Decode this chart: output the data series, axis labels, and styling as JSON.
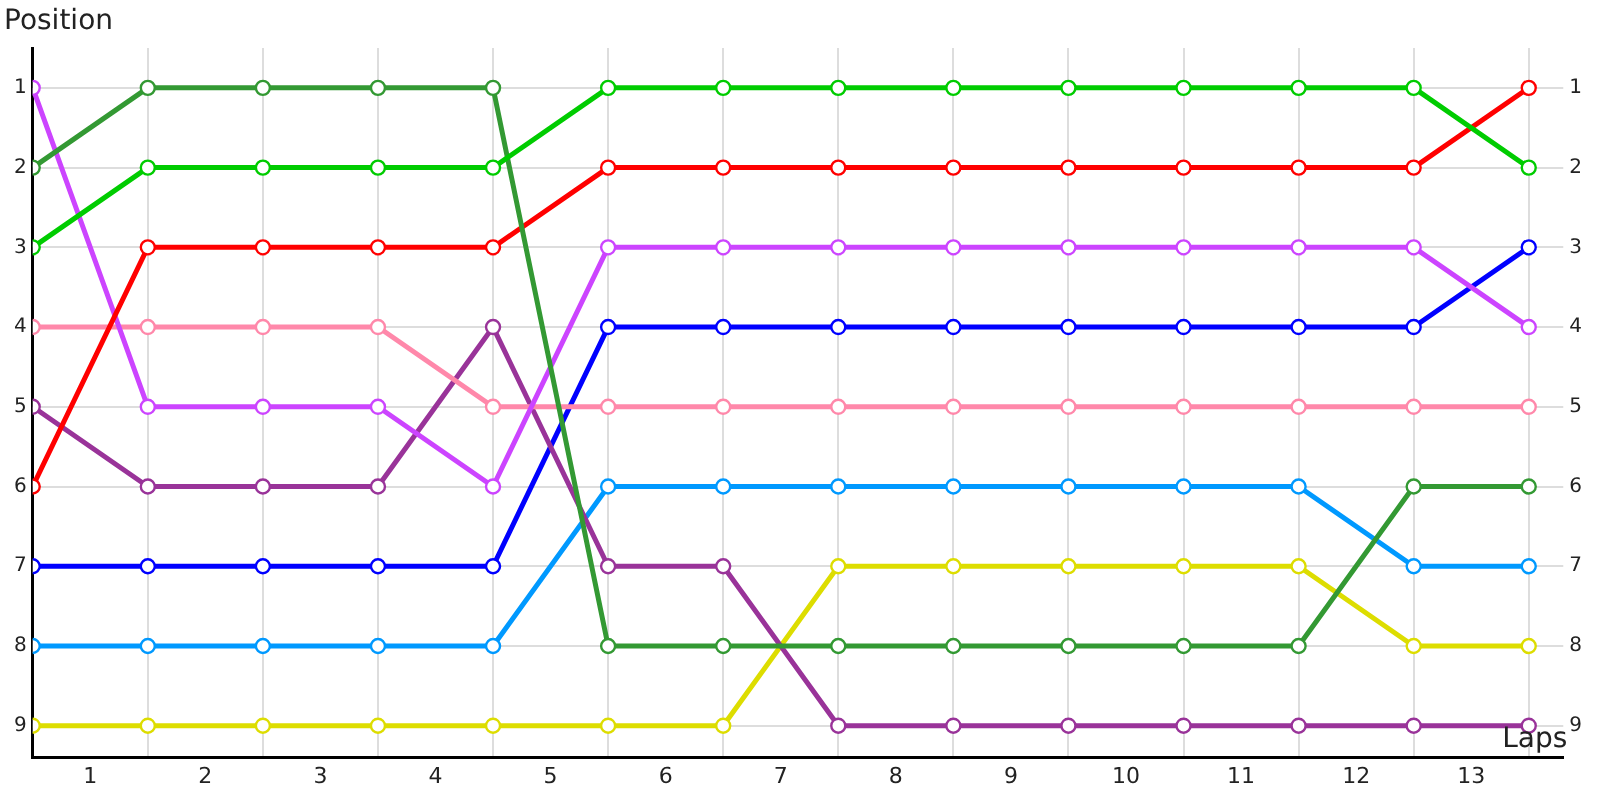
{
  "chart_data": {
    "type": "line",
    "xlabel": "Laps",
    "ylabel": "Position",
    "x": [
      0,
      1,
      2,
      3,
      4,
      5,
      6,
      7,
      8,
      9,
      10,
      11,
      12,
      13
    ],
    "xlim": [
      0,
      13.3
    ],
    "xticks": [
      {
        "value": 0,
        "label": null
      },
      {
        "value": 0.5,
        "label": "1"
      },
      {
        "value": 1,
        "label": null
      },
      {
        "value": 1.5,
        "label": "2"
      },
      {
        "value": 2,
        "label": null
      },
      {
        "value": 2.5,
        "label": "3"
      },
      {
        "value": 3,
        "label": null
      },
      {
        "value": 3.5,
        "label": "4"
      },
      {
        "value": 4,
        "label": null
      },
      {
        "value": 4.5,
        "label": "5"
      },
      {
        "value": 5,
        "label": null
      },
      {
        "value": 5.5,
        "label": "6"
      },
      {
        "value": 6,
        "label": null
      },
      {
        "value": 6.5,
        "label": "7"
      },
      {
        "value": 7,
        "label": null
      },
      {
        "value": 7.5,
        "label": "8"
      },
      {
        "value": 8,
        "label": null
      },
      {
        "value": 8.5,
        "label": "9"
      },
      {
        "value": 9,
        "label": null
      },
      {
        "value": 9.5,
        "label": "10"
      },
      {
        "value": 10,
        "label": null
      },
      {
        "value": 10.5,
        "label": "11"
      },
      {
        "value": 11,
        "label": null
      },
      {
        "value": 11.5,
        "label": "12"
      },
      {
        "value": 12,
        "label": null
      },
      {
        "value": 12.5,
        "label": "13"
      },
      {
        "value": 13,
        "label": null
      }
    ],
    "ylim": [
      9.4,
      0.5
    ],
    "yticks": [
      1,
      2,
      3,
      4,
      5,
      6,
      7,
      8,
      9
    ],
    "y2lim": [
      9.4,
      0.5
    ],
    "y2ticks": [
      1,
      2,
      3,
      4,
      5,
      6,
      7,
      8,
      9
    ],
    "grid": true,
    "marker": "circle",
    "line_style": "solid",
    "legend": false,
    "series": [
      {
        "color": "#00cc00",
        "values": [
          3,
          2,
          2,
          2,
          2,
          1,
          1,
          1,
          1,
          1,
          1,
          1,
          1,
          2
        ]
      },
      {
        "color": "#339933",
        "values": [
          2,
          1,
          1,
          1,
          1,
          8,
          8,
          8,
          8,
          8,
          8,
          8,
          6,
          6
        ]
      },
      {
        "color": "#ff0000",
        "values": [
          6,
          3,
          3,
          3,
          3,
          2,
          2,
          2,
          2,
          2,
          2,
          2,
          2,
          1
        ]
      },
      {
        "color": "#cc44ff",
        "values": [
          1,
          5,
          5,
          5,
          6,
          3,
          3,
          3,
          3,
          3,
          3,
          3,
          3,
          4
        ]
      },
      {
        "color": "#ff88aa",
        "values": [
          4,
          4,
          4,
          4,
          5,
          5,
          5,
          5,
          5,
          5,
          5,
          5,
          5,
          5
        ]
      },
      {
        "color": "#993399",
        "values": [
          5,
          6,
          6,
          6,
          4,
          7,
          7,
          9,
          9,
          9,
          9,
          9,
          9,
          9
        ]
      },
      {
        "color": "#0000ff",
        "values": [
          7,
          7,
          7,
          7,
          7,
          4,
          4,
          4,
          4,
          4,
          4,
          4,
          4,
          3
        ]
      },
      {
        "color": "#0099ff",
        "values": [
          8,
          8,
          8,
          8,
          8,
          6,
          6,
          6,
          6,
          6,
          6,
          6,
          7,
          7
        ]
      },
      {
        "color": "#dddd00",
        "values": [
          9,
          9,
          9,
          9,
          9,
          9,
          9,
          7,
          7,
          7,
          7,
          7,
          8,
          8
        ]
      }
    ]
  }
}
